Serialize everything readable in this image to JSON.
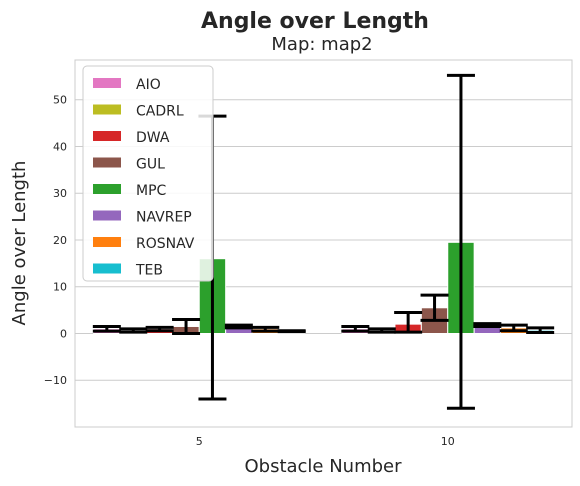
{
  "chart_data": {
    "type": "bar",
    "suptitle": "Angle over Length",
    "title": "Map: map2",
    "xlabel": "Obstacle Number",
    "ylabel": "Angle over Length",
    "categories": [
      "5",
      "10"
    ],
    "ylim": [
      -20,
      58.5
    ],
    "yticks": [
      -10,
      0,
      10,
      20,
      30,
      40,
      50
    ],
    "ytick_labels": [
      "−10",
      "0",
      "10",
      "20",
      "30",
      "40",
      "50"
    ],
    "grid": true,
    "legend_position": "top-left",
    "series": [
      {
        "name": "AIO",
        "color": "#e377c2",
        "values": [
          1.0,
          1.0
        ],
        "err_low": [
          0.5,
          0.5
        ],
        "err_high": [
          1.5,
          1.5
        ]
      },
      {
        "name": "CADRL",
        "color": "#bcbd22",
        "values": [
          0.6,
          0.6
        ],
        "err_low": [
          0.3,
          0.3
        ],
        "err_high": [
          1.0,
          1.0
        ]
      },
      {
        "name": "DWA",
        "color": "#d62728",
        "values": [
          1.0,
          2.0
        ],
        "err_low": [
          0.6,
          0.3
        ],
        "err_high": [
          1.3,
          4.5
        ]
      },
      {
        "name": "GUL",
        "color": "#8c564b",
        "values": [
          1.5,
          5.5
        ],
        "err_low": [
          0.0,
          2.8
        ],
        "err_high": [
          3.0,
          8.2
        ]
      },
      {
        "name": "MPC",
        "color": "#2ca02c",
        "values": [
          16.0,
          19.5
        ],
        "err_low": [
          -14.0,
          -16.0
        ],
        "err_high": [
          46.5,
          55.2
        ]
      },
      {
        "name": "NAVREP",
        "color": "#9467bd",
        "values": [
          1.5,
          1.8
        ],
        "err_low": [
          1.2,
          1.5
        ],
        "err_high": [
          1.8,
          2.1
        ]
      },
      {
        "name": "ROSNAV",
        "color": "#ff7f0e",
        "values": [
          1.0,
          1.2
        ],
        "err_low": [
          0.5,
          0.6
        ],
        "err_high": [
          1.3,
          1.8
        ]
      },
      {
        "name": "TEB",
        "color": "#17becf",
        "values": [
          0.5,
          0.7
        ],
        "err_low": [
          0.4,
          0.2
        ],
        "err_high": [
          0.6,
          1.2
        ]
      }
    ]
  }
}
